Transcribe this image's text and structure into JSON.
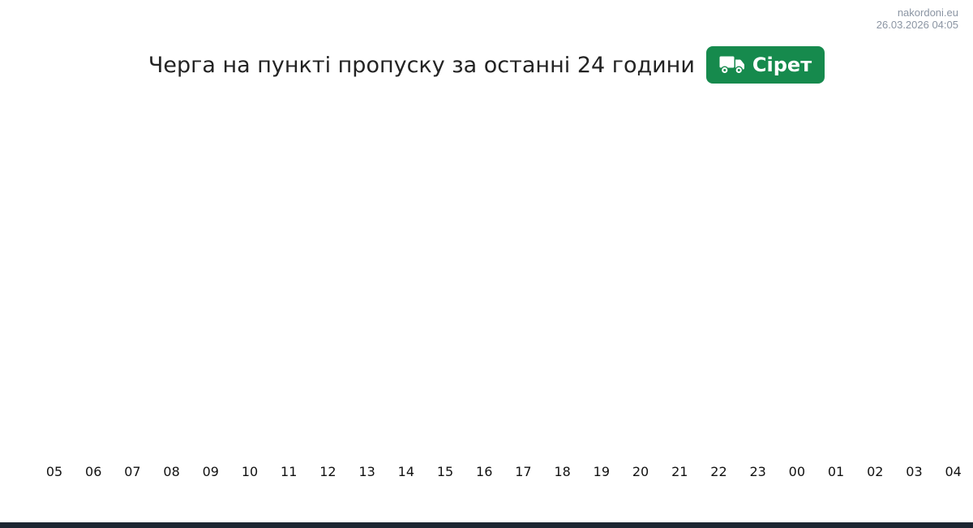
{
  "watermark": {
    "site": "nakordoni.eu",
    "datetime": "26.03.2026 04:05"
  },
  "header": {
    "title": "Черга на пункті пропуску за останні 24 години",
    "checkpoint_button": {
      "label": "Сірет",
      "icon": "truck-icon"
    }
  },
  "colors": {
    "button_green": "#168a4d",
    "title_text": "#232323",
    "watermark_text": "#8b95a3",
    "tick_text": "#111111",
    "footer_bar": "#1c2531",
    "background": "#ffffff"
  },
  "chart_data": {
    "type": "line",
    "title": "Черга на пункті пропуску за останні 24 години",
    "categories": [
      "05",
      "06",
      "07",
      "08",
      "09",
      "10",
      "11",
      "12",
      "13",
      "14",
      "15",
      "16",
      "17",
      "18",
      "19",
      "20",
      "21",
      "22",
      "23",
      "00",
      "01",
      "02",
      "03",
      "04"
    ],
    "series": [],
    "xlabel": "",
    "ylabel": "",
    "legend": "none",
    "grid": false,
    "plot_area_empty": true
  }
}
